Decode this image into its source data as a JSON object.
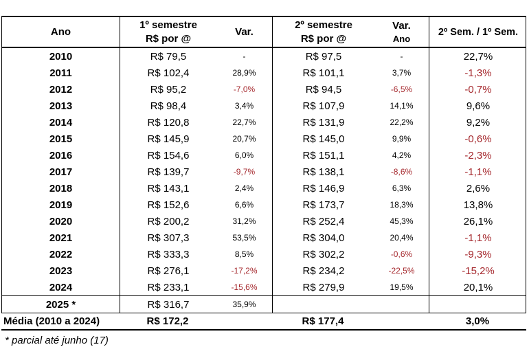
{
  "header": {
    "ano": "Ano",
    "s1_title": "1º semestre",
    "s1_sub": "R$ por @",
    "s1_var": "Var.",
    "s2_title": "2º semestre",
    "s2_sub": "R$ por @",
    "s2_var": "Var.",
    "s2_var_sub": "Ano",
    "ratio": "2º Sem. / 1º Sem."
  },
  "table": {
    "rows": [
      {
        "year": "2010",
        "s1_price": "R$ 79,5",
        "s1_var": "-",
        "s2_price": "R$ 97,5",
        "s2_var": "-",
        "ratio": "22,7%"
      },
      {
        "year": "2011",
        "s1_price": "R$ 102,4",
        "s1_var": "28,9%",
        "s2_price": "R$ 101,1",
        "s2_var": "3,7%",
        "ratio": "-1,3%"
      },
      {
        "year": "2012",
        "s1_price": "R$ 95,2",
        "s1_var": "-7,0%",
        "s2_price": "R$ 94,5",
        "s2_var": "-6,5%",
        "ratio": "-0,7%"
      },
      {
        "year": "2013",
        "s1_price": "R$ 98,4",
        "s1_var": "3,4%",
        "s2_price": "R$ 107,9",
        "s2_var": "14,1%",
        "ratio": "9,6%"
      },
      {
        "year": "2014",
        "s1_price": "R$ 120,8",
        "s1_var": "22,7%",
        "s2_price": "R$ 131,9",
        "s2_var": "22,2%",
        "ratio": "9,2%"
      },
      {
        "year": "2015",
        "s1_price": "R$ 145,9",
        "s1_var": "20,7%",
        "s2_price": "R$ 145,0",
        "s2_var": "9,9%",
        "ratio": "-0,6%"
      },
      {
        "year": "2016",
        "s1_price": "R$ 154,6",
        "s1_var": "6,0%",
        "s2_price": "R$ 151,1",
        "s2_var": "4,2%",
        "ratio": "-2,3%"
      },
      {
        "year": "2017",
        "s1_price": "R$ 139,7",
        "s1_var": "-9,7%",
        "s2_price": "R$ 138,1",
        "s2_var": "-8,6%",
        "ratio": "-1,1%"
      },
      {
        "year": "2018",
        "s1_price": "R$ 143,1",
        "s1_var": "2,4%",
        "s2_price": "R$ 146,9",
        "s2_var": "6,3%",
        "ratio": "2,6%"
      },
      {
        "year": "2019",
        "s1_price": "R$ 152,6",
        "s1_var": "6,6%",
        "s2_price": "R$ 173,7",
        "s2_var": "18,3%",
        "ratio": "13,8%"
      },
      {
        "year": "2020",
        "s1_price": "R$ 200,2",
        "s1_var": "31,2%",
        "s2_price": "R$ 252,4",
        "s2_var": "45,3%",
        "ratio": "26,1%"
      },
      {
        "year": "2021",
        "s1_price": "R$ 307,3",
        "s1_var": "53,5%",
        "s2_price": "R$ 304,0",
        "s2_var": "20,4%",
        "ratio": "-1,1%"
      },
      {
        "year": "2022",
        "s1_price": "R$ 333,3",
        "s1_var": "8,5%",
        "s2_price": "R$ 302,2",
        "s2_var": "-0,6%",
        "ratio": "-9,3%"
      },
      {
        "year": "2023",
        "s1_price": "R$ 276,1",
        "s1_var": "-17,2%",
        "s2_price": "R$ 234,2",
        "s2_var": "-22,5%",
        "ratio": "-15,2%"
      },
      {
        "year": "2024",
        "s1_price": "R$ 233,1",
        "s1_var": "-15,6%",
        "s2_price": "R$ 279,9",
        "s2_var": "19,5%",
        "ratio": "20,1%"
      }
    ],
    "partial_row": {
      "year": "2025 *",
      "s1_price": "R$ 316,7",
      "s1_var": "35,9%",
      "s2_price": "",
      "s2_var": "",
      "ratio": ""
    }
  },
  "summary": {
    "label": "Média (2010 a 2024)",
    "s1_price": "R$ 172,2",
    "s2_price": "R$ 177,4",
    "ratio": "3,0%"
  },
  "footnote": "* parcial até junho (17)",
  "colors": {
    "negative_text": "#A5282D",
    "text": "#000000",
    "border": "#000000",
    "background": "#FFFFFF"
  }
}
